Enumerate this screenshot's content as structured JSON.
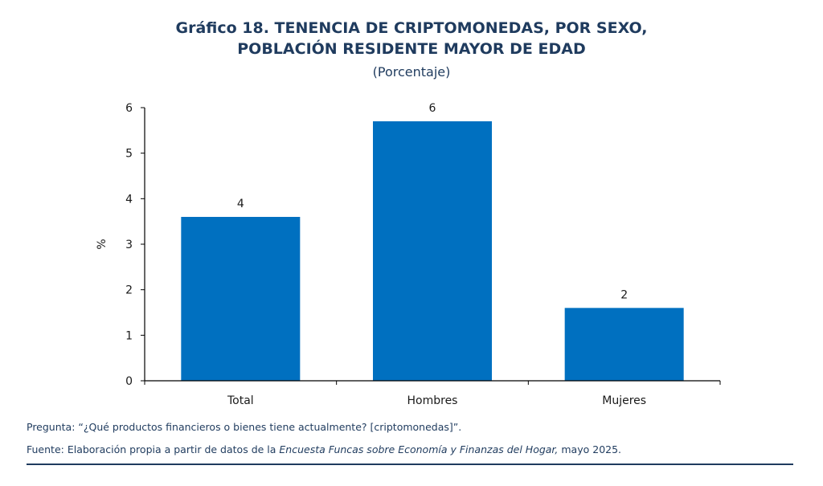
{
  "header": {
    "title_line1": "Gráfico 18. TENENCIA DE CRIPTOMONEDAS, POR SEXO,",
    "title_line2": "POBLACIÓN RESIDENTE MAYOR DE EDAD",
    "subtitle": "(Porcentaje)"
  },
  "chart_data": {
    "type": "bar",
    "categories": [
      "Total",
      "Hombres",
      "Mujeres"
    ],
    "values": [
      3.6,
      5.7,
      1.6
    ],
    "data_labels": [
      "4",
      "6",
      "2"
    ],
    "ylabel": "%",
    "xlabel": "",
    "ylim": [
      0,
      6
    ],
    "yticks": [
      "0",
      "1",
      "2",
      "3",
      "4",
      "5",
      "6"
    ],
    "bar_color": "#0070c0",
    "grid": false,
    "legend": "none"
  },
  "footer": {
    "question": "Pregunta: “¿Qué productos financieros o bienes tiene actualmente? [criptomonedas]”.",
    "source_prefix": "Fuente: Elaboración propia a partir de datos de la ",
    "source_italic": "Encuesta Funcas sobre Economía y Finanzas del Hogar,",
    "source_suffix": " mayo 2025."
  }
}
